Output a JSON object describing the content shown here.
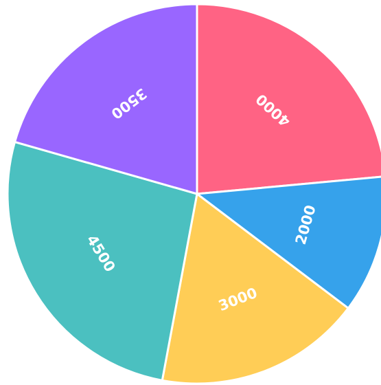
{
  "chart_data": {
    "type": "pie",
    "values": [
      4000,
      2000,
      3000,
      4500,
      3500
    ],
    "colors": [
      "#ff6384",
      "#36a2eb",
      "#ffcd56",
      "#4bc0c0",
      "#9966ff"
    ],
    "start_angle": 0,
    "direction": "clockwise"
  }
}
